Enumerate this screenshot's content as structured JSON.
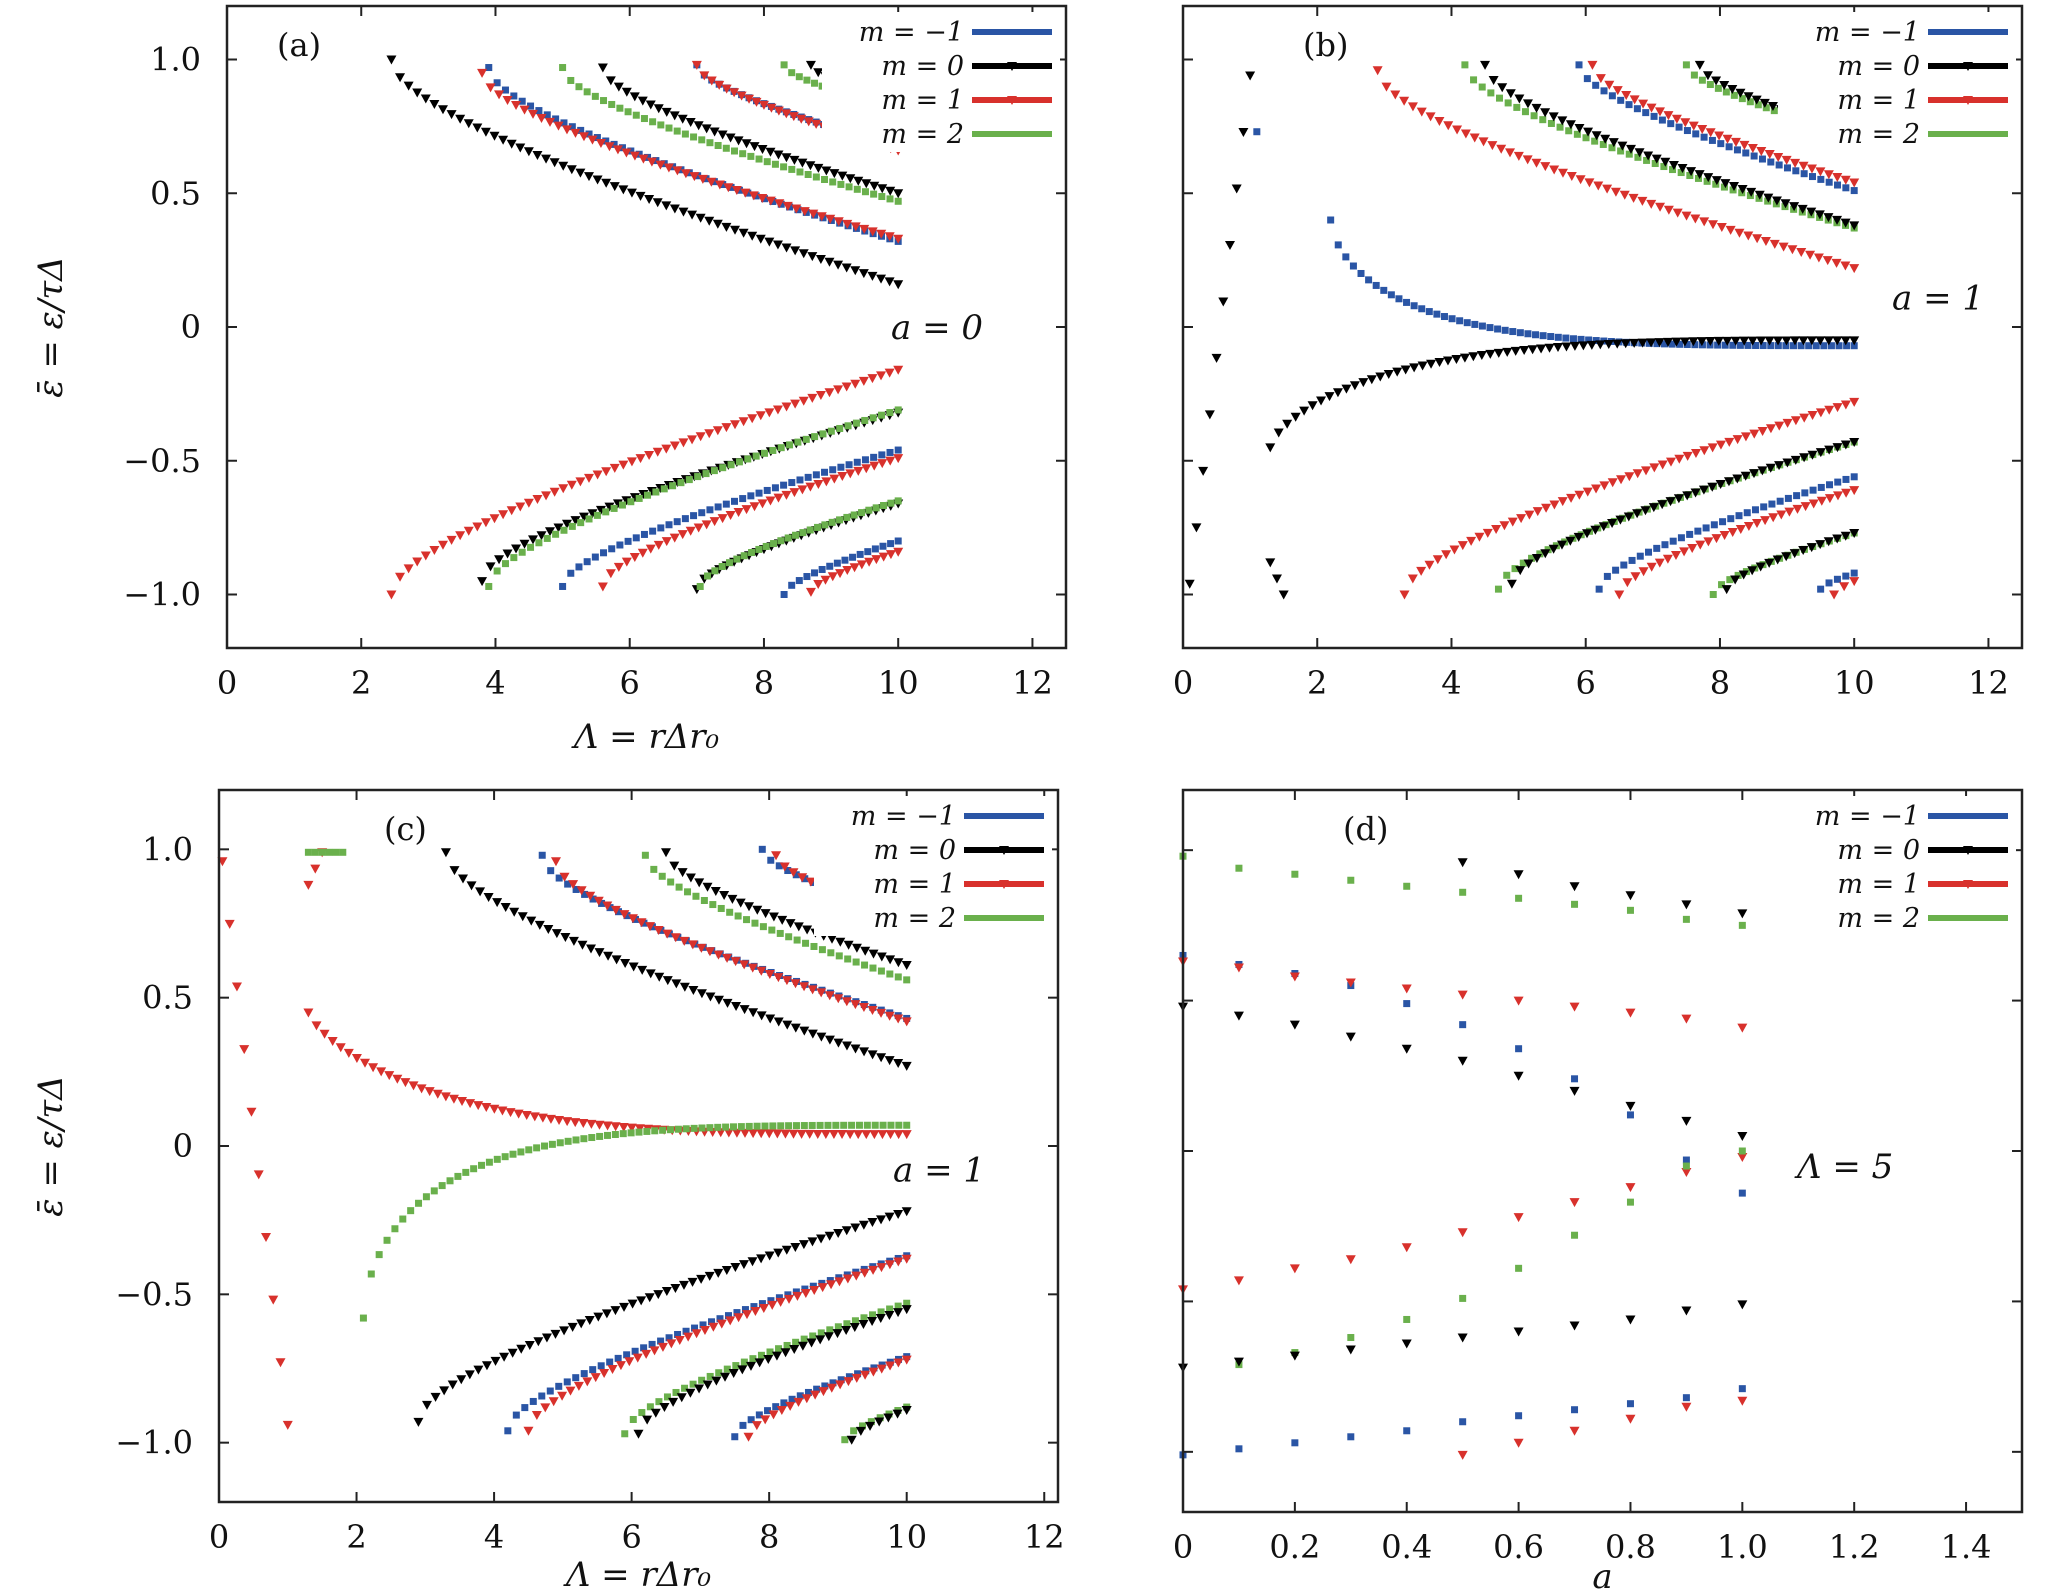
{
  "figure": {
    "legend_labels": [
      "m = −1",
      "m = 0",
      "m = 1",
      "m = 2"
    ],
    "colors": {
      "m=-1": "#2a55a5",
      "m=0": "#000000",
      "m=1": "#d8312c",
      "m=2": "#6ab04c"
    }
  },
  "chart_data": [
    {
      "id": "a",
      "type": "scatter",
      "tag": "(a)",
      "annotation": "a = 0",
      "xlabel": "Λ = rΔr₀",
      "ylabel": "ε̄ = ε/τΔ",
      "xlim": [
        0,
        12.5
      ],
      "ylim": [
        -1.2,
        1.2
      ],
      "xticks": [
        0,
        2,
        4,
        6,
        8,
        10,
        12
      ],
      "xtick_labels": [
        "0",
        "2",
        "4",
        "6",
        "8",
        "10",
        "12"
      ],
      "yticks": [
        1.0,
        0.5,
        0,
        -0.5,
        -1.0
      ],
      "ytick_labels": [
        "1.0",
        "0.5",
        "0",
        "−0.5",
        "−1.0"
      ],
      "legend": "top-right",
      "branches": [
        {
          "m": 0,
          "x0": 2.45,
          "y0": 1.0,
          "x1": 10,
          "y1": 0.16,
          "n": 60
        },
        {
          "m": -1,
          "x0": 3.9,
          "y0": 0.97,
          "x1": 10,
          "y1": 0.32,
          "n": 50
        },
        {
          "m": 1,
          "x0": 3.8,
          "y0": 0.95,
          "x1": 10,
          "y1": 0.33,
          "n": 50
        },
        {
          "m": 2,
          "x0": 5.0,
          "y0": 0.97,
          "x1": 10,
          "y1": 0.47,
          "n": 42
        },
        {
          "m": 0,
          "x0": 5.6,
          "y0": 0.97,
          "x1": 10,
          "y1": 0.5,
          "n": 38
        },
        {
          "m": -1,
          "x0": 7.0,
          "y0": 0.98,
          "x1": 10,
          "y1": 0.67,
          "n": 28
        },
        {
          "m": 1,
          "x0": 7.0,
          "y0": 0.98,
          "x1": 10,
          "y1": 0.66,
          "n": 28
        },
        {
          "m": 2,
          "x0": 8.3,
          "y0": 0.98,
          "x1": 10,
          "y1": 0.81,
          "n": 16
        },
        {
          "m": 0,
          "x0": 8.7,
          "y0": 0.98,
          "x1": 10,
          "y1": 0.84,
          "n": 13
        },
        {
          "m": 1,
          "x0": 2.45,
          "y0": -1.0,
          "x1": 10,
          "y1": -0.16,
          "n": 60
        },
        {
          "m": 0,
          "x0": 3.8,
          "y0": -0.95,
          "x1": 10,
          "y1": -0.32,
          "n": 50
        },
        {
          "m": 2,
          "x0": 3.9,
          "y0": -0.97,
          "x1": 10,
          "y1": -0.31,
          "n": 50
        },
        {
          "m": -1,
          "x0": 5.0,
          "y0": -0.97,
          "x1": 10,
          "y1": -0.46,
          "n": 42
        },
        {
          "m": 1,
          "x0": 5.6,
          "y0": -0.97,
          "x1": 10,
          "y1": -0.49,
          "n": 38
        },
        {
          "m": 0,
          "x0": 7.0,
          "y0": -0.98,
          "x1": 10,
          "y1": -0.66,
          "n": 28
        },
        {
          "m": 2,
          "x0": 7.05,
          "y0": -0.97,
          "x1": 10,
          "y1": -0.65,
          "n": 28
        },
        {
          "m": -1,
          "x0": 8.3,
          "y0": -1.0,
          "x1": 10,
          "y1": -0.8,
          "n": 16
        },
        {
          "m": 1,
          "x0": 8.7,
          "y0": -0.99,
          "x1": 10,
          "y1": -0.84,
          "n": 13
        }
      ]
    },
    {
      "id": "b",
      "type": "scatter",
      "tag": "(b)",
      "annotation": "a = 1",
      "xlabel": "",
      "ylabel": "",
      "xlim": [
        0,
        12.5
      ],
      "ylim": [
        -1.2,
        1.2
      ],
      "xticks": [
        0,
        2,
        4,
        6,
        8,
        10,
        12
      ],
      "xtick_labels": [
        "0",
        "2",
        "4",
        "6",
        "8",
        "10",
        "12"
      ],
      "yticks": [
        1.0,
        0.5,
        0,
        -0.5,
        -1.0
      ],
      "ytick_labels": [],
      "legend": "top-right",
      "branches": [
        {
          "m": 0,
          "x0": 0.1,
          "y0": -0.96,
          "x1": 1.0,
          "y1": 0.94,
          "n": 10,
          "shape": "linear"
        },
        {
          "m": 0,
          "x0": 1.3,
          "y0": -0.88,
          "x1": 1.5,
          "y1": -1.0,
          "n": 3,
          "shape": "linear"
        },
        {
          "m": -1,
          "x0": 1.1,
          "y0": 0.73,
          "x1": 1.1,
          "y1": 0.73,
          "n": 1,
          "shape": "linear"
        },
        {
          "m": -1,
          "x0": 2.2,
          "y0": 0.4,
          "x1": 10,
          "y1": -0.07,
          "n": 70,
          "shape": "decay",
          "k": 1.6
        },
        {
          "m": 0,
          "x0": 1.3,
          "y0": -0.45,
          "x1": 10,
          "y1": -0.05,
          "n": 70,
          "shape": "decay",
          "k": 1.4
        },
        {
          "m": 1,
          "x0": 2.9,
          "y0": 0.96,
          "x1": 10,
          "y1": 0.22,
          "n": 55
        },
        {
          "m": 2,
          "x0": 4.2,
          "y0": 0.98,
          "x1": 10,
          "y1": 0.37,
          "n": 46
        },
        {
          "m": 0,
          "x0": 4.5,
          "y0": 0.98,
          "x1": 10,
          "y1": 0.38,
          "n": 44
        },
        {
          "m": -1,
          "x0": 5.9,
          "y0": 0.98,
          "x1": 10,
          "y1": 0.51,
          "n": 34
        },
        {
          "m": 1,
          "x0": 6.1,
          "y0": 0.98,
          "x1": 10,
          "y1": 0.54,
          "n": 32
        },
        {
          "m": 2,
          "x0": 7.5,
          "y0": 0.98,
          "x1": 10,
          "y1": 0.71,
          "n": 22
        },
        {
          "m": 0,
          "x0": 7.7,
          "y0": 0.98,
          "x1": 10,
          "y1": 0.72,
          "n": 20
        },
        {
          "m": -1,
          "x0": 9.1,
          "y0": 0.98,
          "x1": 10,
          "y1": 0.87,
          "n": 8
        },
        {
          "m": 1,
          "x0": 9.2,
          "y0": 0.98,
          "x1": 10,
          "y1": 0.89,
          "n": 7
        },
        {
          "m": 1,
          "x0": 3.3,
          "y0": -1.0,
          "x1": 10,
          "y1": -0.28,
          "n": 55
        },
        {
          "m": 2,
          "x0": 4.7,
          "y0": -0.98,
          "x1": 10,
          "y1": -0.43,
          "n": 44
        },
        {
          "m": 0,
          "x0": 4.9,
          "y0": -0.96,
          "x1": 10,
          "y1": -0.43,
          "n": 42
        },
        {
          "m": -1,
          "x0": 6.2,
          "y0": -0.98,
          "x1": 10,
          "y1": -0.56,
          "n": 32
        },
        {
          "m": 1,
          "x0": 6.5,
          "y0": -1.0,
          "x1": 10,
          "y1": -0.61,
          "n": 30
        },
        {
          "m": 2,
          "x0": 7.9,
          "y0": -1.0,
          "x1": 10,
          "y1": -0.77,
          "n": 18
        },
        {
          "m": 0,
          "x0": 8.1,
          "y0": -0.98,
          "x1": 10,
          "y1": -0.77,
          "n": 16
        },
        {
          "m": -1,
          "x0": 9.5,
          "y0": -0.98,
          "x1": 10,
          "y1": -0.92,
          "n": 5
        },
        {
          "m": 1,
          "x0": 9.7,
          "y0": -1.0,
          "x1": 10,
          "y1": -0.95,
          "n": 3
        }
      ]
    },
    {
      "id": "c",
      "type": "scatter",
      "tag": "(c)",
      "annotation": "a = 1",
      "xlabel": "Λ = rΔr₀",
      "ylabel": "ε̄ = ε/τΔ",
      "xlim": [
        0,
        12.2
      ],
      "ylim": [
        -1.2,
        1.2
      ],
      "xticks": [
        0,
        2,
        4,
        6,
        8,
        10,
        12
      ],
      "xtick_labels": [
        "0",
        "2",
        "4",
        "6",
        "8",
        "10",
        "12"
      ],
      "yticks": [
        1.0,
        0.5,
        0,
        -0.5,
        -1.0
      ],
      "ytick_labels": [
        "1.0",
        "0.5",
        "0",
        "−0.5",
        "−1.0"
      ],
      "legend": "top-right",
      "branches": [
        {
          "m": 1,
          "x0": 0.05,
          "y0": 0.96,
          "x1": 1.0,
          "y1": -0.94,
          "n": 10,
          "shape": "linear"
        },
        {
          "m": 1,
          "x0": 1.3,
          "y0": 0.88,
          "x1": 1.5,
          "y1": 0.99,
          "n": 3,
          "shape": "linear"
        },
        {
          "m": 2,
          "x0": 1.3,
          "y0": 0.99,
          "x1": 1.8,
          "y1": 0.99,
          "n": 6,
          "shape": "linear"
        },
        {
          "m": 1,
          "x0": 1.3,
          "y0": 0.45,
          "x1": 10,
          "y1": 0.04,
          "n": 75,
          "shape": "decay",
          "k": 1.3
        },
        {
          "m": 2,
          "x0": 2.1,
          "y0": -0.58,
          "x1": 10,
          "y1": 0.07,
          "n": 70,
          "shape": "decay",
          "k": 1.7
        },
        {
          "m": 0,
          "x0": 3.3,
          "y0": 0.99,
          "x1": 10,
          "y1": 0.27,
          "n": 55
        },
        {
          "m": -1,
          "x0": 4.7,
          "y0": 0.98,
          "x1": 10,
          "y1": 0.43,
          "n": 44
        },
        {
          "m": 1,
          "x0": 4.9,
          "y0": 0.96,
          "x1": 10,
          "y1": 0.42,
          "n": 42
        },
        {
          "m": 2,
          "x0": 6.2,
          "y0": 0.98,
          "x1": 10,
          "y1": 0.56,
          "n": 32
        },
        {
          "m": 0,
          "x0": 6.5,
          "y0": 0.99,
          "x1": 10,
          "y1": 0.61,
          "n": 30
        },
        {
          "m": -1,
          "x0": 7.9,
          "y0": 1.0,
          "x1": 10,
          "y1": 0.77,
          "n": 18
        },
        {
          "m": 1,
          "x0": 8.1,
          "y0": 0.98,
          "x1": 10,
          "y1": 0.76,
          "n": 16
        },
        {
          "m": 2,
          "x0": 9.5,
          "y0": 0.98,
          "x1": 10,
          "y1": 0.94,
          "n": 5
        },
        {
          "m": 0,
          "x0": 9.7,
          "y0": 0.98,
          "x1": 10,
          "y1": 0.95,
          "n": 4
        },
        {
          "m": 0,
          "x0": 2.9,
          "y0": -0.93,
          "x1": 10,
          "y1": -0.22,
          "n": 58
        },
        {
          "m": -1,
          "x0": 4.2,
          "y0": -0.96,
          "x1": 10,
          "y1": -0.37,
          "n": 48
        },
        {
          "m": 1,
          "x0": 4.5,
          "y0": -0.96,
          "x1": 10,
          "y1": -0.38,
          "n": 46
        },
        {
          "m": 2,
          "x0": 5.9,
          "y0": -0.97,
          "x1": 10,
          "y1": -0.53,
          "n": 34
        },
        {
          "m": 0,
          "x0": 6.1,
          "y0": -0.97,
          "x1": 10,
          "y1": -0.55,
          "n": 32
        },
        {
          "m": -1,
          "x0": 7.5,
          "y0": -0.98,
          "x1": 10,
          "y1": -0.71,
          "n": 22
        },
        {
          "m": 1,
          "x0": 7.7,
          "y0": -0.98,
          "x1": 10,
          "y1": -0.72,
          "n": 20
        },
        {
          "m": 2,
          "x0": 9.1,
          "y0": -0.99,
          "x1": 10,
          "y1": -0.88,
          "n": 8
        },
        {
          "m": 0,
          "x0": 9.2,
          "y0": -0.99,
          "x1": 10,
          "y1": -0.89,
          "n": 7
        }
      ]
    },
    {
      "id": "d",
      "type": "scatter",
      "tag": "(d)",
      "annotation": "Λ = 5",
      "xlabel": "a",
      "ylabel": "",
      "xlim": [
        0,
        1.5
      ],
      "ylim": [
        -1.2,
        1.2
      ],
      "xticks": [
        0,
        0.2,
        0.4,
        0.6,
        0.8,
        1.0,
        1.2,
        1.4
      ],
      "xtick_labels": [
        "0",
        "0.2",
        "0.4",
        "0.6",
        "0.8",
        "1.0",
        "1.2",
        "1.4"
      ],
      "yticks": [
        1.0,
        0.5,
        0,
        -0.5,
        -1.0
      ],
      "ytick_labels": [],
      "legend": "top-right",
      "x": [
        0,
        0.1,
        0.2,
        0.3,
        0.4,
        0.5,
        0.6,
        0.7,
        0.8,
        0.9,
        1.0
      ],
      "series": [
        {
          "m": 2,
          "values": [
            0.98,
            0.94,
            0.92,
            0.9,
            0.88,
            0.86,
            0.84,
            0.82,
            0.8,
            0.77,
            0.75
          ]
        },
        {
          "m": 0,
          "values": [
            null,
            null,
            null,
            null,
            null,
            0.96,
            0.92,
            0.88,
            0.85,
            0.82,
            0.79
          ]
        },
        {
          "m": -1,
          "values": [
            0.65,
            0.62,
            0.59,
            0.55,
            0.49,
            0.42,
            0.34,
            0.24,
            0.12,
            -0.03,
            -0.14
          ]
        },
        {
          "m": 1,
          "values": [
            0.63,
            0.61,
            0.58,
            0.56,
            0.54,
            0.52,
            0.5,
            0.48,
            0.46,
            0.44,
            0.41
          ]
        },
        {
          "m": 0,
          "values": [
            0.48,
            0.45,
            0.42,
            0.38,
            0.34,
            0.3,
            0.25,
            0.2,
            0.15,
            0.1,
            0.05
          ]
        },
        {
          "m": 1,
          "values": [
            -0.46,
            -0.43,
            -0.39,
            -0.36,
            -0.32,
            -0.27,
            -0.22,
            -0.17,
            -0.12,
            -0.07,
            -0.02
          ]
        },
        {
          "m": 2,
          "values": [
            null,
            -0.71,
            -0.67,
            -0.62,
            -0.56,
            -0.49,
            -0.39,
            -0.28,
            -0.17,
            -0.05,
            0.0
          ]
        },
        {
          "m": 0,
          "values": [
            -0.72,
            -0.7,
            -0.68,
            -0.66,
            -0.64,
            -0.62,
            -0.6,
            -0.58,
            -0.56,
            -0.53,
            -0.51
          ]
        },
        {
          "m": -1,
          "values": [
            -1.01,
            -0.99,
            -0.97,
            -0.95,
            -0.93,
            -0.9,
            -0.88,
            -0.86,
            -0.84,
            -0.82,
            -0.79
          ]
        },
        {
          "m": 1,
          "values": [
            null,
            null,
            null,
            null,
            null,
            -1.01,
            -0.97,
            -0.93,
            -0.89,
            -0.85,
            -0.83
          ]
        }
      ]
    }
  ]
}
